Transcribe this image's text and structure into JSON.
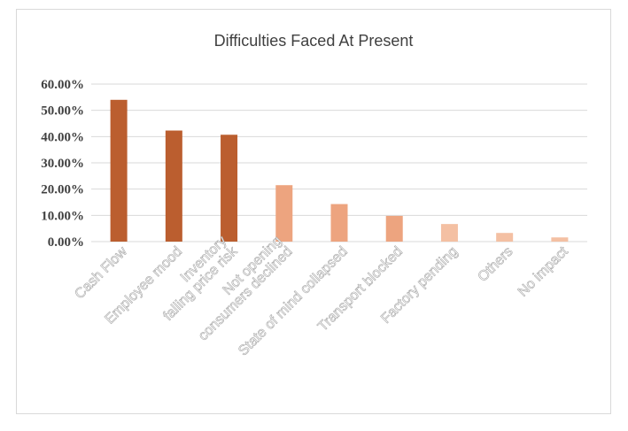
{
  "chart_data": {
    "type": "bar",
    "title": "Difficulties Faced At Present",
    "xlabel": "",
    "ylabel": "",
    "categories": [
      "Cash Flow",
      "Employee mood",
      "Inventory falling price risk",
      "Not opening consumers declined",
      "State of mind collapsed",
      "Transport blocked",
      "Factory pending",
      "Others",
      "No impact"
    ],
    "category_lines": [
      [
        "Cash Flow"
      ],
      [
        "Employee mood"
      ],
      [
        "Inventory",
        "falling price risk"
      ],
      [
        "Not opening",
        "consumers declined"
      ],
      [
        "State of mind collapsed"
      ],
      [
        "Transport blocked"
      ],
      [
        "Factory pending"
      ],
      [
        "Others"
      ],
      [
        "No impact"
      ]
    ],
    "values": [
      54.0,
      42.3,
      40.7,
      21.5,
      14.3,
      9.8,
      6.7,
      3.3,
      1.6
    ],
    "bar_colors": [
      "#bb5e2f",
      "#bb5e2f",
      "#bb5e2f",
      "#eda47f",
      "#eda47f",
      "#eda47f",
      "#f4c0a3",
      "#f4c0a3",
      "#f4c0a3"
    ],
    "ylim": [
      0,
      60
    ],
    "yticks": [
      0,
      10,
      20,
      30,
      40,
      50,
      60
    ],
    "ytick_labels": [
      "0.00%",
      "10.00%",
      "20.00%",
      "30.00%",
      "40.00%",
      "50.00%",
      "60.00%"
    ],
    "grid": true,
    "gridline_color": "#d9d9d9",
    "legend": "none"
  }
}
